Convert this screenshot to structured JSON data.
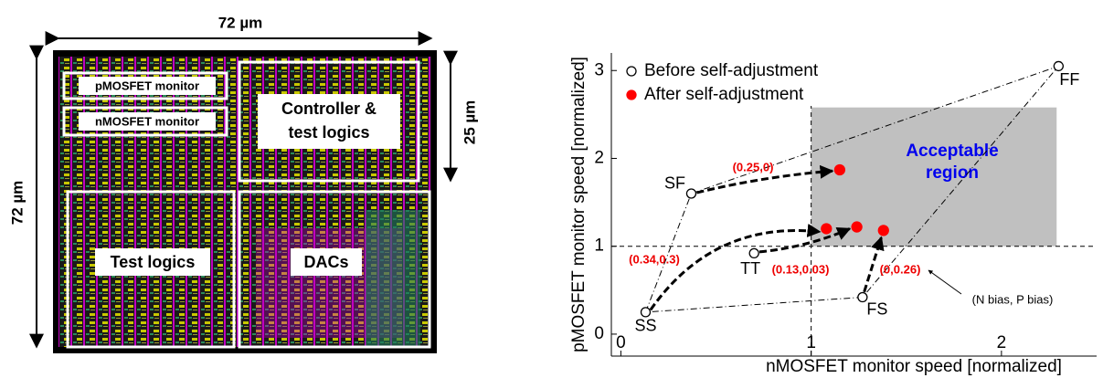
{
  "layout_figure": {
    "width_label": "72 µm",
    "height_label": "72 µm",
    "block_height_label": "25 µm",
    "blocks": [
      "pMOSFET monitor",
      "nMOSFET monitor",
      "Controller &",
      "test logics",
      "Test logics",
      "DACs"
    ]
  },
  "chart_data": {
    "type": "scatter",
    "xlabel": "nMOSFET monitor speed [normalized]",
    "ylabel": "pMOSFET monitor speed [normalized]",
    "xlim": [
      -0.05,
      2.5
    ],
    "ylim": [
      -0.25,
      3.2
    ],
    "xticks": [
      0,
      1,
      2
    ],
    "yticks": [
      0,
      1,
      2,
      3
    ],
    "reference_lines": {
      "x": 1,
      "y": 1
    },
    "region": {
      "label": [
        "Acceptable",
        "region"
      ],
      "x": [
        1,
        2.29
      ],
      "y": [
        1,
        2.58
      ],
      "color": "#c0c0c0"
    },
    "legend": "upper left",
    "series": [
      {
        "name": "Before self-adjustment",
        "color": "#ffffff",
        "point_labels": [
          "SS",
          "SF",
          "FF",
          "FS",
          "TT"
        ],
        "x": [
          0.13,
          0.37,
          2.3,
          1.27,
          0.7
        ],
        "values": [
          0.25,
          1.6,
          3.05,
          0.42,
          0.92
        ]
      },
      {
        "name": "After self-adjustment",
        "color": "#ff0000",
        "x": [
          1.08,
          1.15,
          1.38,
          1.24
        ],
        "values": [
          1.2,
          1.87,
          1.18,
          1.22
        ]
      }
    ],
    "annotations": [
      "(0.34,0.3)",
      "(0.25,0)",
      "(0,0.26)",
      "(0.13,0.03)",
      "(N bias, P bias)"
    ]
  }
}
